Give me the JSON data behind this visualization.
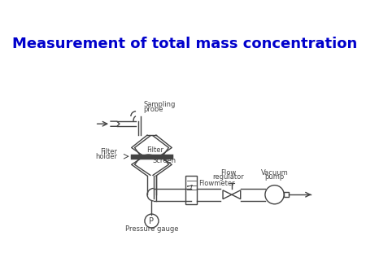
{
  "title": "Measurement of total mass concentration",
  "title_color": "#0000CC",
  "title_fontsize": 13,
  "title_fontweight": "bold",
  "bg_color": "#ffffff",
  "diagram_color": "#444444",
  "label_fontsize": 6.0,
  "labels": {
    "sampling_probe_1": "Sampling",
    "sampling_probe_2": "probe",
    "filter_holder_1": "Filter",
    "filter_holder_2": "holder",
    "filter": "Filter",
    "screen": "Screen",
    "flow_regulator_1": "Flow",
    "flow_regulator_2": "regulator",
    "vacuum_pump_1": "Vacuum",
    "vacuum_pump_2": "pump",
    "flowmeter": "Flowmeter",
    "pressure_gauge": "Pressure gauge",
    "P": "P"
  }
}
